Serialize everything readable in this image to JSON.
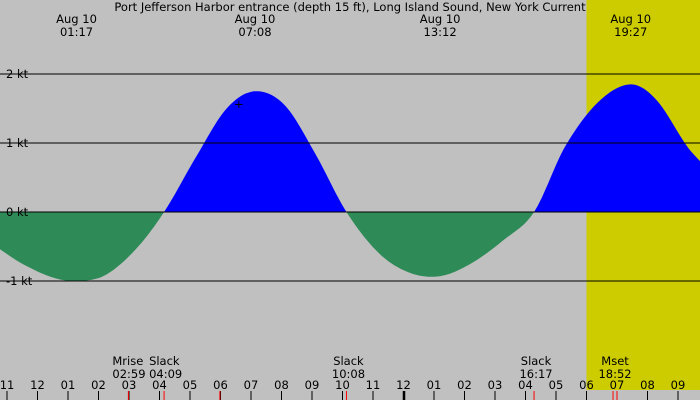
{
  "chart_data": {
    "type": "area",
    "title": "Port Jefferson Harbor entrance (depth 15 ft), Long Island Sound, New York Current",
    "unit": "kt",
    "y_ticks": [
      {
        "value": 2,
        "label": "2 kt"
      },
      {
        "value": 1,
        "label": "1 kt"
      },
      {
        "value": 0,
        "label": "0 kt"
      },
      {
        "value": -1,
        "label": "-1 kt"
      }
    ],
    "x_ticks": [
      {
        "hour": 11,
        "label": "11"
      },
      {
        "hour": 12,
        "label": "12"
      },
      {
        "hour": 13,
        "label": "01"
      },
      {
        "hour": 14,
        "label": "02"
      },
      {
        "hour": 15,
        "label": "03"
      },
      {
        "hour": 16,
        "label": "04"
      },
      {
        "hour": 17,
        "label": "05"
      },
      {
        "hour": 18,
        "label": "06"
      },
      {
        "hour": 19,
        "label": "07"
      },
      {
        "hour": 20,
        "label": "08"
      },
      {
        "hour": 21,
        "label": "09"
      },
      {
        "hour": 22,
        "label": "10"
      },
      {
        "hour": 23,
        "label": "11"
      },
      {
        "hour": 24,
        "label": "12"
      },
      {
        "hour": 25,
        "label": "01"
      },
      {
        "hour": 26,
        "label": "02"
      },
      {
        "hour": 27,
        "label": "03"
      },
      {
        "hour": 28,
        "label": "04"
      },
      {
        "hour": 29,
        "label": "05"
      },
      {
        "hour": 30,
        "label": "06"
      },
      {
        "hour": 31,
        "label": "07"
      },
      {
        "hour": 32,
        "label": "08"
      },
      {
        "hour": 33,
        "label": "09"
      }
    ],
    "day_period": {
      "start_hour": 30.0,
      "end_hour": 43.0
    },
    "extremes": [
      {
        "date": "Aug 10",
        "time": "01:17",
        "hour": 13.28,
        "value": -1.0
      },
      {
        "date": "Aug 10",
        "time": "07:08",
        "hour": 19.13,
        "value": 1.75
      },
      {
        "date": "Aug 10",
        "time": "13:12",
        "hour": 25.2,
        "value": -0.93
      },
      {
        "date": "Aug 10",
        "time": "19:27",
        "hour": 31.45,
        "value": 1.85
      }
    ],
    "events": [
      {
        "title": "Mrise",
        "time": "02:59",
        "hour": 14.98,
        "kind": "moon"
      },
      {
        "title": "Slack",
        "time": "04:09",
        "hour": 16.15,
        "kind": "slack"
      },
      {
        "title": "Slack",
        "time": "10:08",
        "hour": 22.13,
        "kind": "slack"
      },
      {
        "title": "Slack",
        "time": "16:17",
        "hour": 28.28,
        "kind": "slack"
      },
      {
        "title": "Mset",
        "time": "18:52",
        "hour": 30.87,
        "kind": "moon"
      }
    ],
    "sun_marks": [
      {
        "hour": 17.98
      },
      {
        "hour": 31.0
      }
    ],
    "curve_points": [
      [
        10.7,
        -0.52
      ],
      [
        11.5,
        -0.75
      ],
      [
        12.5,
        -0.95
      ],
      [
        13.28,
        -1.0
      ],
      [
        14.2,
        -0.92
      ],
      [
        15.2,
        -0.55
      ],
      [
        16.15,
        0.0
      ],
      [
        17.2,
        0.8
      ],
      [
        18.2,
        1.5
      ],
      [
        19.13,
        1.75
      ],
      [
        20.1,
        1.55
      ],
      [
        21.1,
        0.85
      ],
      [
        22.13,
        0.0
      ],
      [
        23.2,
        -0.6
      ],
      [
        24.2,
        -0.88
      ],
      [
        25.2,
        -0.93
      ],
      [
        26.2,
        -0.75
      ],
      [
        27.3,
        -0.4
      ],
      [
        28.28,
        0.0
      ],
      [
        29.3,
        0.95
      ],
      [
        30.4,
        1.6
      ],
      [
        31.45,
        1.85
      ],
      [
        32.3,
        1.62
      ],
      [
        33.3,
        0.95
      ],
      [
        33.8,
        0.7
      ]
    ],
    "x_range": [
      10.7,
      33.8
    ],
    "y_range": [
      -2.35,
      3.1
    ],
    "colors": {
      "background": "#c0c0c0",
      "daylight": "#cccc00",
      "flood": "#0000ff",
      "ebb": "#2e8b57",
      "grid": "#000000",
      "sun_marker": "#ff0000"
    }
  }
}
